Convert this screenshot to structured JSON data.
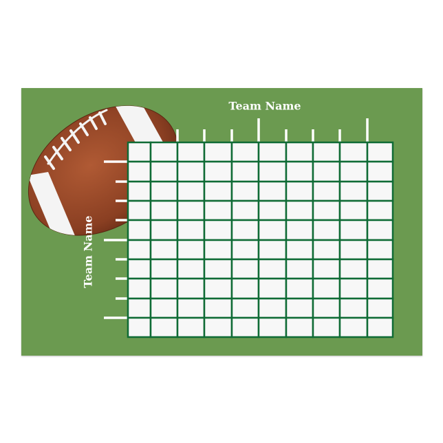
{
  "top_team_label": "Team Name",
  "side_team_label": "Team Name",
  "grid": {
    "rows": 10,
    "columns": 10
  },
  "colors": {
    "field": "#6b9a50",
    "grid_lines": "#0f6b35",
    "cells": "#f7f7f7",
    "ball": "#8a3f22",
    "stripes": "#ffffff"
  },
  "icons": {
    "decoration": "football-icon"
  }
}
